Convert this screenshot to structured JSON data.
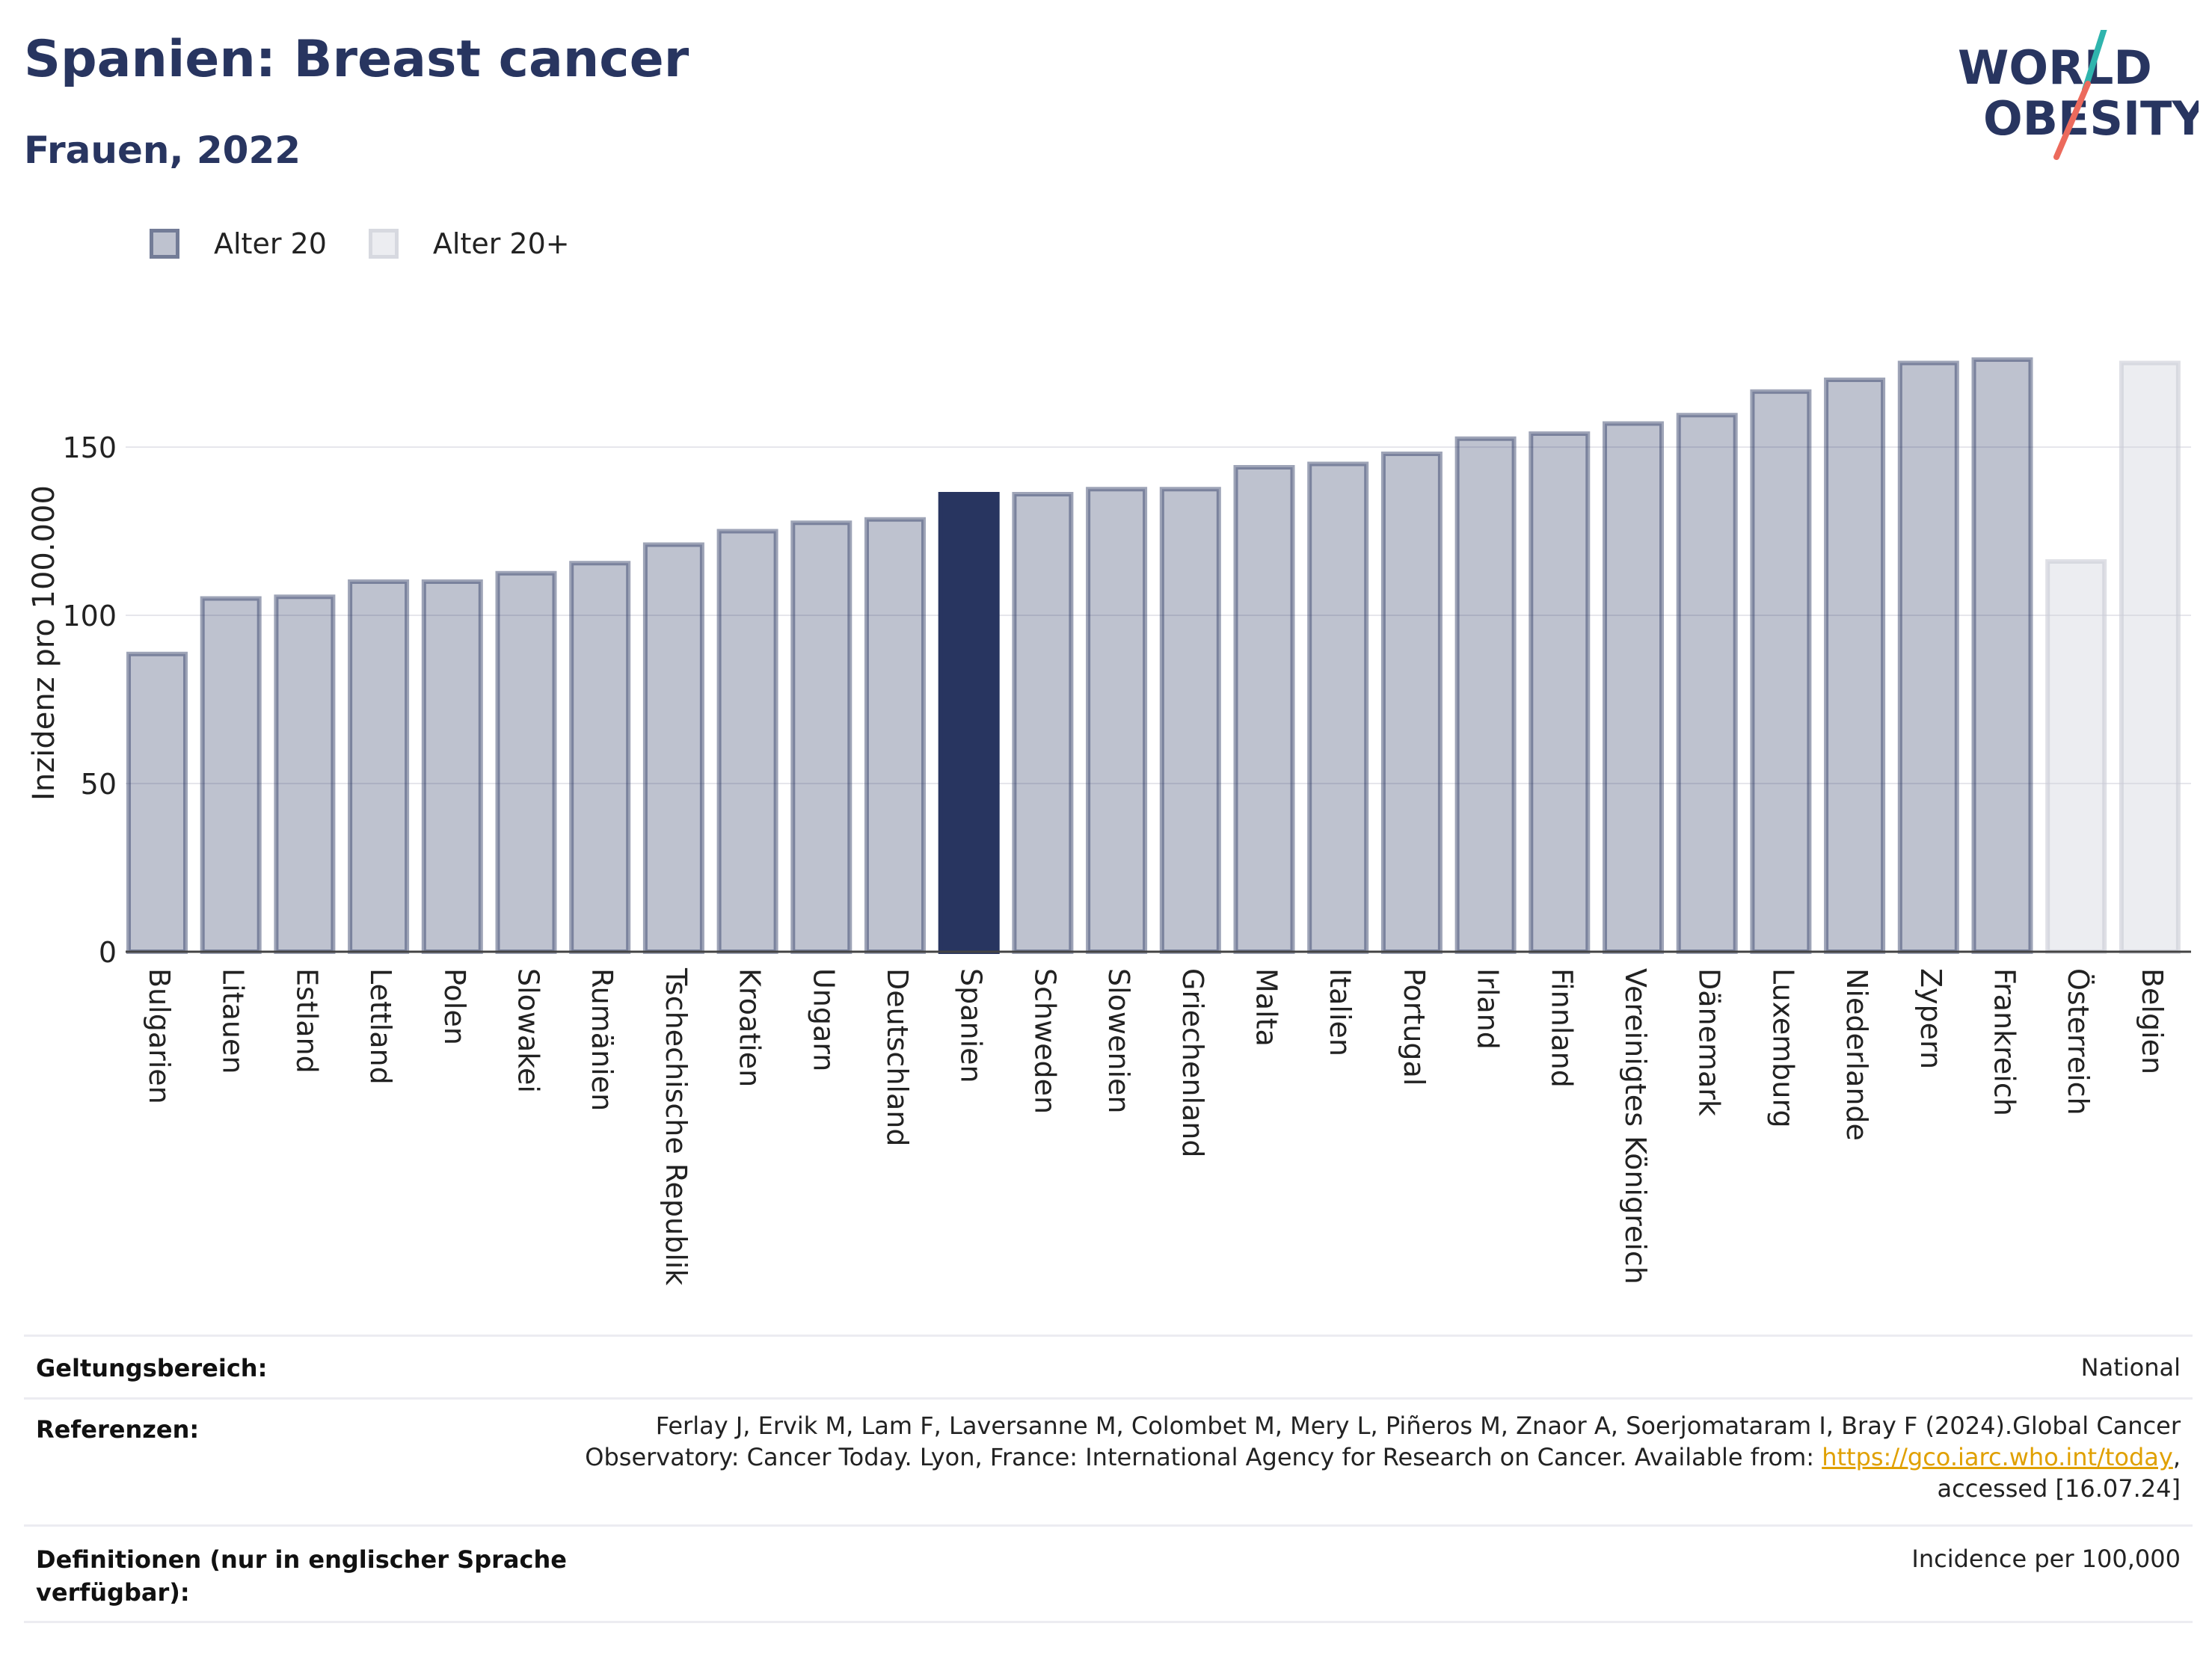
{
  "header": {
    "title": "Spanien: Breast cancer",
    "subtitle": "Frauen, 2022",
    "logo_line1": "WORLD",
    "logo_line2": "OBESITY"
  },
  "legend": [
    {
      "label": "Alter 20",
      "color": "#283560"
    },
    {
      "label": "Alter 20+",
      "color": "#c9cbd6"
    }
  ],
  "chart_data": {
    "type": "bar",
    "ylabel": "Inzidenz pro 100.000",
    "ylim": [
      0,
      185
    ],
    "yticks": [
      0,
      50,
      100,
      150
    ],
    "grid": true,
    "highlight": "Spanien",
    "categories": [
      "Bulgarien",
      "Litauen",
      "Estland",
      "Lettland",
      "Polen",
      "Slowakei",
      "Rumänien",
      "Tschechische Republik",
      "Kroatien",
      "Ungarn",
      "Deutschland",
      "Spanien",
      "Schweden",
      "Slowenien",
      "Griechenland",
      "Malta",
      "Italien",
      "Portugal",
      "Irland",
      "Finnland",
      "Vereinigtes Königreich",
      "Dänemark",
      "Luxemburg",
      "Niederlande",
      "Zypern",
      "Frankreich",
      "Österreich",
      "Belgien"
    ],
    "values": [
      88.5,
      105,
      105.5,
      110,
      110,
      112.5,
      115.5,
      121,
      125,
      127.5,
      128.5,
      136,
      136,
      137.5,
      137.5,
      144,
      145,
      148,
      152.5,
      154,
      157,
      159.5,
      166.5,
      170,
      175,
      176,
      116,
      175
    ],
    "groups": [
      "Alter 20",
      "Alter 20",
      "Alter 20",
      "Alter 20",
      "Alter 20",
      "Alter 20",
      "Alter 20",
      "Alter 20",
      "Alter 20",
      "Alter 20",
      "Alter 20",
      "Alter 20",
      "Alter 20",
      "Alter 20",
      "Alter 20",
      "Alter 20",
      "Alter 20",
      "Alter 20",
      "Alter 20",
      "Alter 20",
      "Alter 20",
      "Alter 20",
      "Alter 20",
      "Alter 20",
      "Alter 20",
      "Alter 20",
      "Alter 20+",
      "Alter 20+"
    ]
  },
  "info": {
    "scope_label": "Geltungsbereich:",
    "scope_value": "National",
    "refs_label": "Referenzen:",
    "refs_line1": "Ferlay J, Ervik M, Lam F, Laversanne M, Colombet M, Mery L, Piñeros M, Znaor A, Soerjomataram I, Bray F (2024).Global Cancer",
    "refs_line2_pre": "Observatory: Cancer Today. Lyon, France: International Agency for Research on Cancer. Available from: ",
    "refs_link": "https://gco.iarc.who.int/today",
    "refs_line2_post": ",",
    "refs_line3": "accessed [16.07.24]",
    "defs_label_line1": "Definitionen (nur in englischer Sprache",
    "defs_label_line2": "verfügbar):",
    "defs_value": "Incidence per 100,000"
  }
}
